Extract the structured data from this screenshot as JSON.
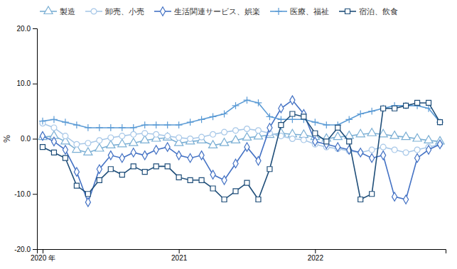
{
  "chart_data": {
    "type": "line",
    "y_label": "%",
    "categories": [
      "2020 年",
      null,
      null,
      null,
      null,
      null,
      null,
      null,
      null,
      null,
      null,
      null,
      "2021",
      null,
      null,
      null,
      null,
      null,
      null,
      null,
      null,
      null,
      null,
      null,
      "2022",
      null,
      null,
      null,
      null,
      null,
      null,
      null,
      null,
      null,
      null,
      null
    ],
    "ylim": [
      -20.0,
      20.0
    ],
    "yticks": [
      {
        "value": -20.0,
        "label": "-20.0"
      },
      {
        "value": -10.0,
        "label": "-10.0"
      },
      {
        "value": 0.0,
        "label": "0.0"
      },
      {
        "value": 10.0,
        "label": "10.0"
      },
      {
        "value": 20.0,
        "label": "20.0"
      }
    ],
    "grid": false,
    "legend": "upper left",
    "series": [
      {
        "name": "製造",
        "color": "#7bafd4",
        "marker": "triangle",
        "line_style": "solid",
        "values": [
          0.3,
          0.5,
          -0.5,
          -2.0,
          -2.5,
          -1.8,
          -1.2,
          -1.0,
          -0.8,
          -0.3,
          0.0,
          0.2,
          -0.8,
          -0.5,
          -0.3,
          -1.2,
          -0.8,
          -0.3,
          0.2,
          0.4,
          0.7,
          1.0,
          0.8,
          0.7,
          0.3,
          0.0,
          0.3,
          0.5,
          0.8,
          1.0,
          0.8,
          0.5,
          0.3,
          0.0,
          -0.3,
          -0.5
        ]
      },
      {
        "name": "卸売、小売",
        "color": "#a8c8e8",
        "marker": "circle",
        "line_style": "solid",
        "values": [
          2.8,
          2.0,
          0.5,
          -1.0,
          -0.8,
          -0.3,
          0.2,
          0.5,
          0.8,
          1.0,
          0.8,
          0.5,
          0.2,
          0.0,
          0.3,
          0.8,
          1.2,
          1.5,
          1.8,
          1.5,
          1.0,
          0.5,
          0.0,
          -0.2,
          -1.0,
          -1.5,
          -1.8,
          -2.2,
          -2.5,
          -2.0,
          -1.5,
          -2.0,
          -2.5,
          -2.0,
          -1.5,
          -1.0
        ]
      },
      {
        "name": "生活関連サービス、娯楽",
        "color": "#4472c4",
        "marker": "diamond",
        "line_style": "solid",
        "values": [
          0.5,
          -0.5,
          -2.0,
          -6.0,
          -11.5,
          -5.5,
          -3.0,
          -3.5,
          -2.5,
          -3.0,
          -2.0,
          -1.5,
          -3.0,
          -3.5,
          -3.0,
          -6.5,
          -7.5,
          -4.5,
          -1.5,
          -4.0,
          2.0,
          5.5,
          7.0,
          4.5,
          -0.5,
          -1.0,
          -1.5,
          -2.0,
          -2.5,
          -3.5,
          -3.0,
          -10.5,
          -11.0,
          -3.5,
          -2.0,
          -1.0
        ]
      },
      {
        "name": "医療、福祉",
        "color": "#5b9bd5",
        "marker": "plus",
        "line_style": "solid",
        "values": [
          3.2,
          3.5,
          3.0,
          2.5,
          2.0,
          2.0,
          2.0,
          2.0,
          2.0,
          2.5,
          2.5,
          2.5,
          2.5,
          3.0,
          3.5,
          4.0,
          4.5,
          6.0,
          7.0,
          6.5,
          4.0,
          3.5,
          3.5,
          3.5,
          3.0,
          2.5,
          2.5,
          3.5,
          4.5,
          5.0,
          5.5,
          6.0,
          6.0,
          6.0,
          5.5,
          3.0
        ]
      },
      {
        "name": "宿泊、飲食",
        "color": "#1f4e79",
        "marker": "square",
        "line_style": "solid",
        "values": [
          -1.5,
          -2.5,
          -3.5,
          -8.5,
          -10.0,
          -7.5,
          -5.5,
          -6.5,
          -5.0,
          -6.0,
          -5.0,
          -5.0,
          -7.0,
          -7.5,
          -7.5,
          -9.0,
          -11.0,
          -9.5,
          -8.0,
          -11.0,
          -5.5,
          2.5,
          4.5,
          4.0,
          1.0,
          -0.5,
          2.0,
          -0.5,
          -11.0,
          -10.0,
          5.5,
          5.5,
          6.0,
          6.5,
          6.5,
          3.0
        ]
      }
    ]
  }
}
